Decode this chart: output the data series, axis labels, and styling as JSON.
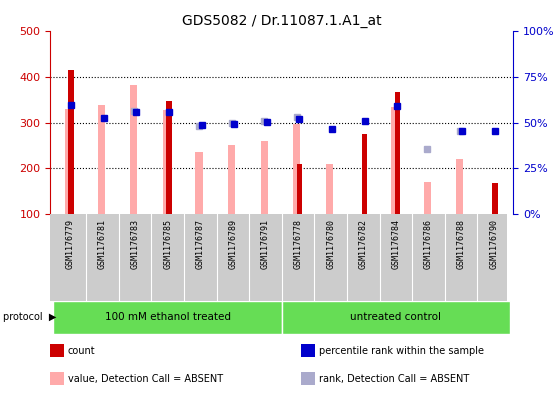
{
  "title": "GDS5082 / Dr.11087.1.A1_at",
  "samples": [
    "GSM1176779",
    "GSM1176781",
    "GSM1176783",
    "GSM1176785",
    "GSM1176787",
    "GSM1176789",
    "GSM1176791",
    "GSM1176778",
    "GSM1176780",
    "GSM1176782",
    "GSM1176784",
    "GSM1176786",
    "GSM1176788",
    "GSM1176790"
  ],
  "count_values": [
    415,
    100,
    100,
    348,
    100,
    100,
    100,
    210,
    100,
    275,
    368,
    100,
    100,
    168
  ],
  "pink_values": [
    330,
    340,
    383,
    329,
    237,
    252,
    261,
    297,
    210,
    100,
    335,
    170,
    221,
    100
  ],
  "blue_square_values": [
    340,
    310,
    323,
    323,
    296,
    298,
    302,
    308,
    287,
    305,
    337,
    null,
    283,
    283
  ],
  "light_blue_values": [
    null,
    null,
    325,
    null,
    293,
    300,
    303,
    313,
    null,
    null,
    null,
    242,
    283,
    null
  ],
  "protocol_groups": [
    {
      "label": "100 mM ethanol treated",
      "start": 0,
      "end": 7
    },
    {
      "label": "untreated control",
      "start": 7,
      "end": 14
    }
  ],
  "ylim_left": [
    100,
    500
  ],
  "ylim_right": [
    0,
    100
  ],
  "yticks_left": [
    100,
    200,
    300,
    400,
    500
  ],
  "yticks_right": [
    0,
    25,
    50,
    75,
    100
  ],
  "ytick_labels_right": [
    "0%",
    "25%",
    "50%",
    "75%",
    "100%"
  ],
  "left_axis_color": "#cc0000",
  "right_axis_color": "#0000cc",
  "count_color": "#cc0000",
  "pink_color": "#ffaaaa",
  "blue_square_color": "#0000cc",
  "light_blue_color": "#aaaacc",
  "green_color": "#66dd55",
  "gray_color": "#cccccc",
  "legend_items": [
    {
      "label": "count",
      "color": "#cc0000"
    },
    {
      "label": "percentile rank within the sample",
      "color": "#0000cc"
    },
    {
      "label": "value, Detection Call = ABSENT",
      "color": "#ffaaaa"
    },
    {
      "label": "rank, Detection Call = ABSENT",
      "color": "#aaaacc"
    }
  ],
  "gridline_values": [
    200,
    300,
    400
  ],
  "protocol_label": "protocol"
}
